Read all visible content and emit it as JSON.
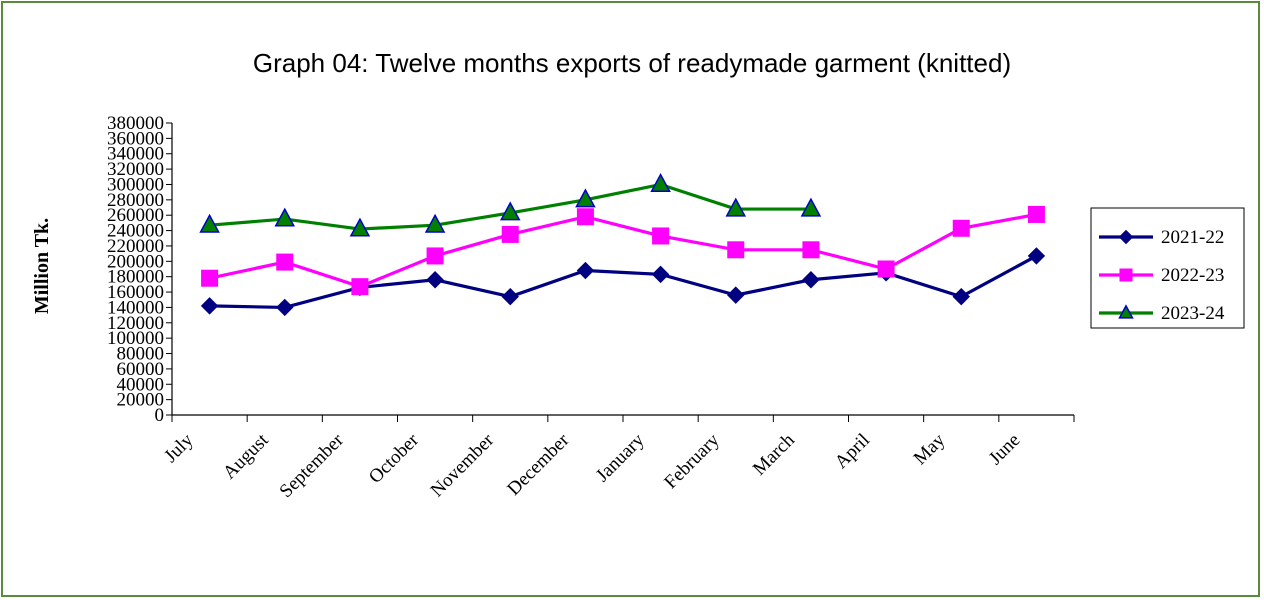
{
  "chart_data": {
    "type": "line",
    "title": "Graph 04: Twelve months exports of readymade garment (knitted)",
    "ylabel": "Million Tk.",
    "xlabel": "",
    "categories": [
      "July",
      "August",
      "September",
      "October",
      "November",
      "December",
      "January",
      "February",
      "March",
      "April",
      "May",
      "June"
    ],
    "yticks": [
      "0",
      "20000",
      "40000",
      "60000",
      "80000",
      "100000",
      "120000",
      "140000",
      "160000",
      "180000",
      "200000",
      "220000",
      "240000",
      "260000",
      "280000",
      "300000",
      "320000",
      "340000",
      "360000",
      "380000"
    ],
    "ylim": [
      0,
      380000
    ],
    "legend_position": "right",
    "grid": false,
    "series": [
      {
        "name": "2021-22",
        "color": "#000080",
        "marker": "diamond",
        "values": [
          142000,
          140000,
          166000,
          176000,
          154000,
          188000,
          183000,
          156000,
          176000,
          185000,
          154000,
          207000
        ]
      },
      {
        "name": "2022-23",
        "color": "#ff00ff",
        "marker": "square",
        "values": [
          178000,
          199000,
          167000,
          207000,
          235000,
          258000,
          233000,
          215000,
          215000,
          190000,
          243000,
          261000
        ]
      },
      {
        "name": "2023-24",
        "color": "#008000",
        "marker": "triangle",
        "marker_fill": "#008000",
        "marker_stroke": "#0000cc",
        "values": [
          247000,
          255000,
          242000,
          247000,
          263000,
          280000,
          300000,
          268000,
          268000,
          null,
          null,
          null
        ]
      }
    ]
  }
}
